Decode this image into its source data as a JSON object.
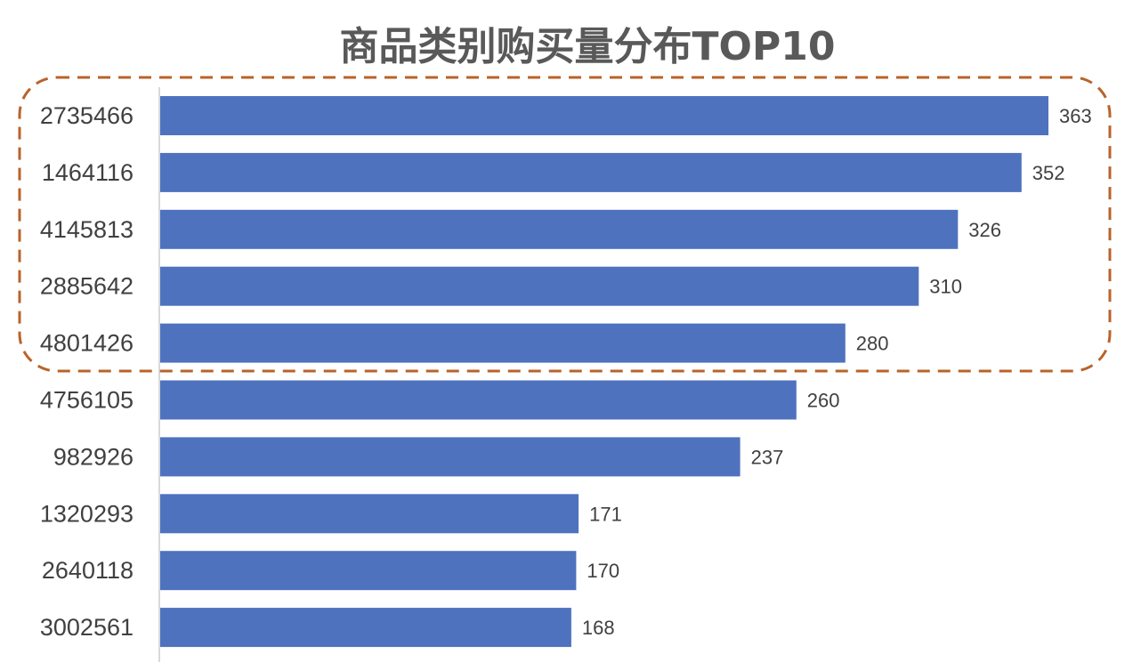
{
  "chart_data": {
    "type": "bar",
    "orientation": "horizontal",
    "title": "商品类别购买量分布TOP10",
    "xlabel": "",
    "ylabel": "",
    "xlim": [
      0,
      363
    ],
    "categories": [
      "2735466",
      "1464116",
      "4145813",
      "2885642",
      "4801426",
      "4756105",
      "982926",
      "1320293",
      "2640118",
      "3002561"
    ],
    "values": [
      363,
      352,
      326,
      310,
      280,
      260,
      237,
      171,
      170,
      168
    ],
    "highlight_top_n": 5,
    "colors": {
      "bar": "#4e72be",
      "highlight_border": "#b8632b",
      "axis": "#d9d9d9",
      "title": "#595959",
      "text": "#404040"
    }
  }
}
